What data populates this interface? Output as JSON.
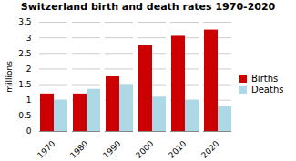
{
  "chart_data": {
    "type": "bar",
    "title": "Switzerland birth and death rates 1970-2020",
    "categories": [
      "1970",
      "1980",
      "1990",
      "2000",
      "2010",
      "2020"
    ],
    "series": [
      {
        "name": "Births",
        "color": "#cc0000",
        "values": [
          1.2,
          1.2,
          1.75,
          2.75,
          3.05,
          3.25
        ]
      },
      {
        "name": "Deaths",
        "color": "#add8e6",
        "values": [
          1.0,
          1.35,
          1.5,
          1.1,
          1.0,
          0.8
        ]
      }
    ],
    "ylabel": "millions",
    "ylim": [
      0,
      3.5
    ],
    "yticks": [
      0,
      0.5,
      1,
      1.5,
      2,
      2.5,
      3,
      3.5
    ],
    "grid": true,
    "legend": "right"
  }
}
